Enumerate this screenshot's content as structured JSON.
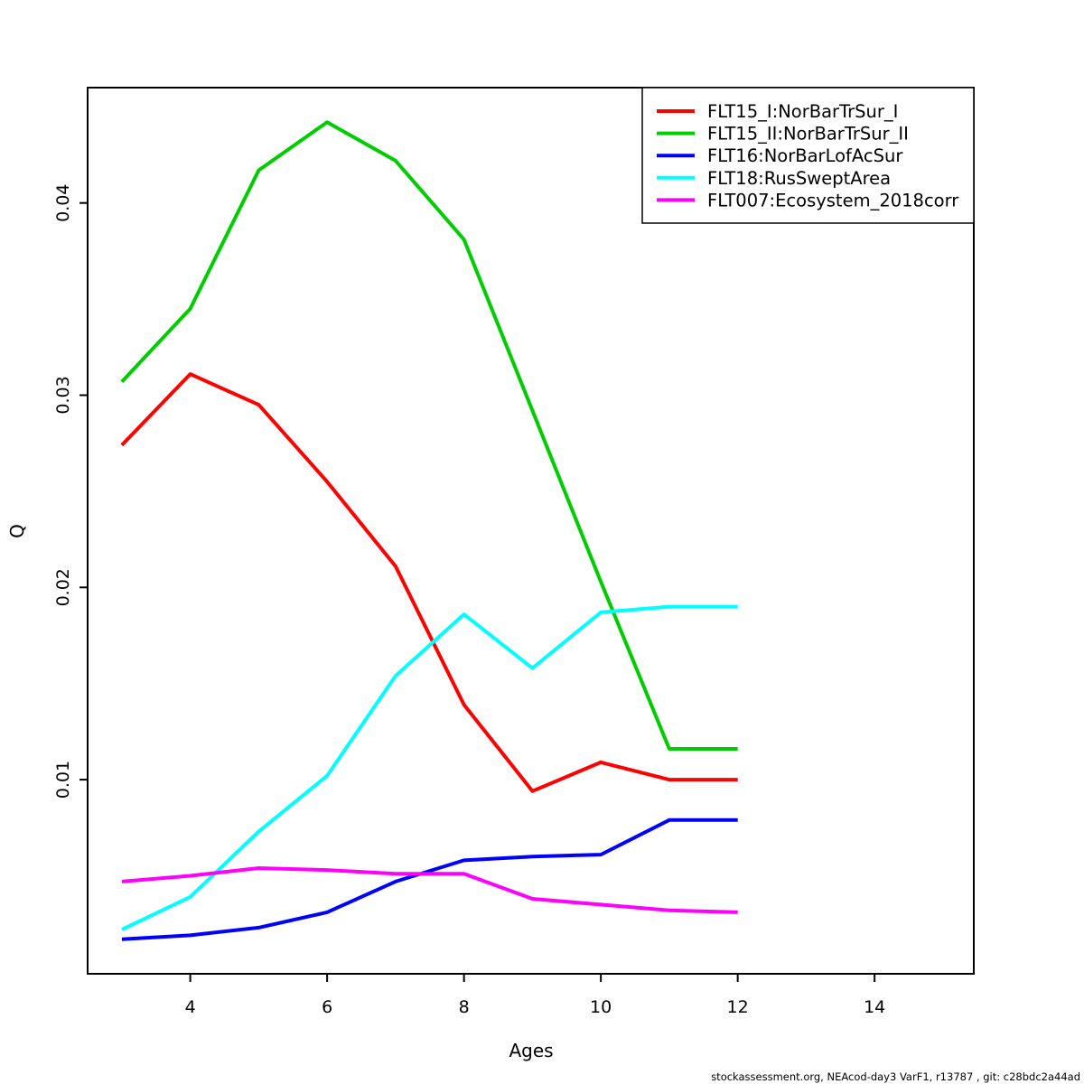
{
  "page": {
    "background": "#ffffff"
  },
  "footer": {
    "text": "stockassessment.org, NEAcod-day3 VarF1, r13787 , git: c28bdc2a44ad"
  },
  "chart_data": {
    "type": "line",
    "title": "",
    "xlabel": "Ages",
    "ylabel": "Q",
    "x": [
      3,
      4,
      5,
      6,
      7,
      8,
      9,
      10,
      11,
      12
    ],
    "xlim": [
      2.5,
      15.45
    ],
    "ylim": [
      -0.0001,
      0.046
    ],
    "xticks": [
      4,
      6,
      8,
      10,
      12,
      14
    ],
    "yticks": [
      0.01,
      0.02,
      0.03,
      0.04
    ],
    "ytick_labels": [
      "0.01",
      "0.02",
      "0.03",
      "0.04"
    ],
    "grid": false,
    "legend_position": "top-right-inside",
    "axis_color": "#000000",
    "line_width": 4,
    "series": [
      {
        "name": "FLT15_I:NorBarTrSur_I",
        "color": "#ff0000",
        "values": [
          0.0274,
          0.0311,
          0.0295,
          0.0255,
          0.0211,
          0.0139,
          0.0094,
          0.0109,
          0.01,
          0.01
        ]
      },
      {
        "name": "FLT15_II:NorBarTrSur_II",
        "color": "#00cd00",
        "values": [
          0.0307,
          0.0345,
          0.0417,
          0.0442,
          0.0422,
          0.0381,
          0.0292,
          0.0203,
          0.0116,
          0.0116
        ]
      },
      {
        "name": "FLT16:NorBarLofAcSur",
        "color": "#0000ff",
        "values": [
          0.0017,
          0.0019,
          0.0023,
          0.0031,
          0.0047,
          0.0058,
          0.006,
          0.0061,
          0.0079,
          0.0079
        ]
      },
      {
        "name": "FLT18:RusSweptArea",
        "color": "#00ffff",
        "values": [
          0.0022,
          0.0039,
          0.0073,
          0.0102,
          0.0154,
          0.0186,
          0.0158,
          0.0187,
          0.019,
          0.019
        ]
      },
      {
        "name": "FLT007:Ecosystem_2018corr",
        "color": "#ff00ff",
        "values": [
          0.0047,
          0.005,
          0.0054,
          0.0053,
          0.0051,
          0.0051,
          0.0038,
          0.0035,
          0.0032,
          0.0031
        ]
      }
    ]
  }
}
